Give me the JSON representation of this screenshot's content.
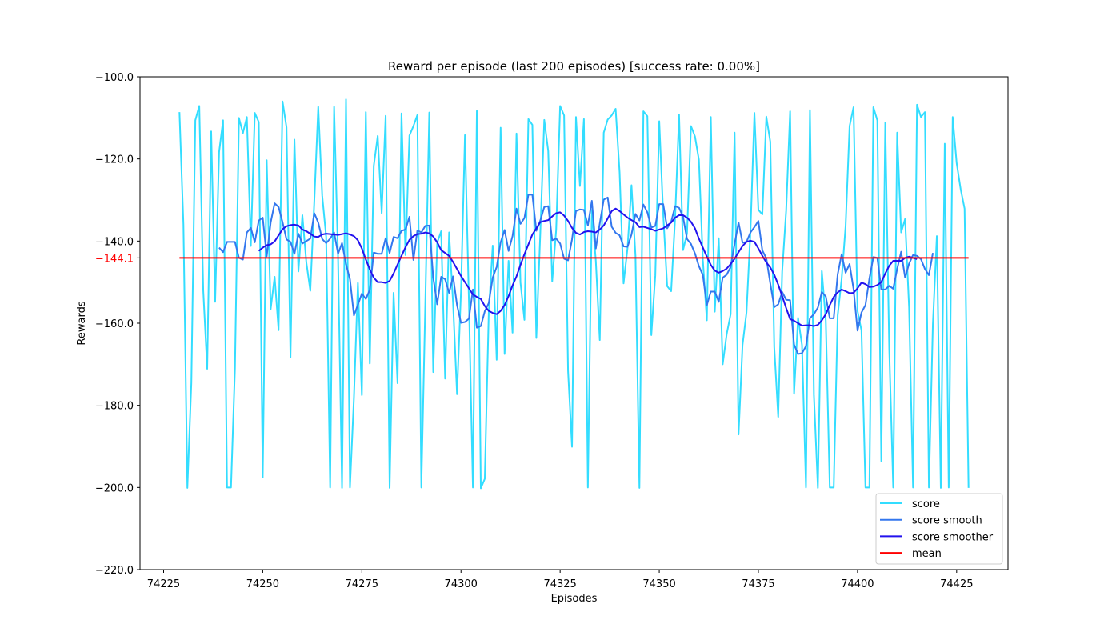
{
  "chart_data": {
    "type": "line",
    "title": "Reward per episode (last 200 episodes) [success rate: 0.00%]",
    "xlabel": "Episodes",
    "ylabel": "Rewards",
    "xlim": [
      74219.05,
      74437.95
    ],
    "ylim": [
      -220,
      -100
    ],
    "xticks": [
      74225,
      74250,
      74275,
      74300,
      74325,
      74350,
      74375,
      74400,
      74425
    ],
    "xtick_labels": [
      "74225",
      "74250",
      "74275",
      "74300",
      "74325",
      "74350",
      "74375",
      "74400",
      "74425"
    ],
    "yticks": [
      -220,
      -200,
      -180,
      -160,
      -140,
      -120,
      -100
    ],
    "ytick_labels": [
      "−220.0",
      "−200.0",
      "−180.0",
      "−160.0",
      "−140.0",
      "−120.0",
      "−100.0"
    ],
    "mean_label": "−144.1",
    "mean_value": -144.1,
    "legend_position": "lower right",
    "grid": false,
    "series": [
      {
        "name": "score",
        "color": "#33ddff",
        "x_start": 74229,
        "values": [
          -108.6,
          -135.9,
          -200.1,
          -174.5,
          -110.6,
          -107.1,
          -152.1,
          -171.1,
          -113.3,
          -154.8,
          -118.3,
          -110.6,
          -200,
          -200,
          -170.9,
          -110,
          -113.7,
          -109.8,
          -141.2,
          -108.8,
          -111,
          -197.6,
          -120.3,
          -156.6,
          -148.7,
          -161.7,
          -106,
          -112.3,
          -168.3,
          -115.3,
          -147.4,
          -133.7,
          -145.2,
          -152.1,
          -130.5,
          -107.3,
          -128.9,
          -139,
          -200,
          -107.3,
          -144.1,
          -200.1,
          -105.5,
          -200,
          -178.2,
          -150.2,
          -177.5,
          -108.6,
          -169.8,
          -121.7,
          -114.4,
          -133.2,
          -109.5,
          -200.1,
          -152.6,
          -174.6,
          -108.9,
          -143.4,
          -114.3,
          -112,
          -109.3,
          -200,
          -155.3,
          -108.7,
          -171.9,
          -140.4,
          -137.6,
          -173.5,
          -137.9,
          -155.1,
          -177.3,
          -152.3,
          -114.2,
          -154.8,
          -200,
          -108.3,
          -200.2,
          -197.9,
          -157.5,
          -141.1,
          -168.9,
          -112.4,
          -167.5,
          -144.8,
          -162.3,
          -113.8,
          -150.1,
          -159.2,
          -110.3,
          -111.7,
          -163.6,
          -138.1,
          -110.5,
          -118.1,
          -149.8,
          -137.3,
          -107.1,
          -109.4,
          -171.6,
          -190.1,
          -109.8,
          -126.6,
          -110.3,
          -200,
          -132.4,
          -144.8,
          -164.1,
          -113.6,
          -110.4,
          -109.4,
          -107.8,
          -123.3,
          -150.3,
          -141.7,
          -126.4,
          -143.6,
          -200.1,
          -108.4,
          -109.6,
          -162.9,
          -148.4,
          -110.8,
          -133.5,
          -151,
          -152.2,
          -134.4,
          -109.2,
          -142.2,
          -138.2,
          -112,
          -114.5,
          -120.2,
          -144.7,
          -159.3,
          -109.8,
          -157.2,
          -139.3,
          -170,
          -162.7,
          -157.8,
          -113.6,
          -187.1,
          -165.3,
          -157.4,
          -137.6,
          -108.8,
          -132.4,
          -133.5,
          -109.7,
          -115.8,
          -165.8,
          -182.8,
          -147.4,
          -132.6,
          -108.4,
          -177.2,
          -158.7,
          -165.3,
          -200,
          -108.1,
          -177.4,
          -200.1,
          -147.3,
          -159.4,
          -200,
          -200,
          -158.1,
          -149.2,
          -136.3,
          -112,
          -107.4,
          -157,
          -161.8,
          -200,
          -200,
          -107.4,
          -110.6,
          -193.6,
          -111.1,
          -166.3,
          -200,
          -113.6,
          -137.9,
          -134.6,
          -156.1,
          -200,
          -106.8,
          -109.8,
          -108.6,
          -200,
          -160.3,
          -138.8,
          -200.1,
          -116.3,
          -200,
          -109.8,
          -121,
          -127.3,
          -132.1,
          -200.1
        ]
      },
      {
        "name": "score smooth",
        "color": "#3377ee",
        "x_start": 74239,
        "values": [
          -141.6,
          -142.7,
          -140.2,
          -140.2,
          -140.2,
          -144.1,
          -144.5,
          -137.9,
          -136.8,
          -140.3,
          -135,
          -134.3,
          -143.7,
          -135.5,
          -130.8,
          -131.7,
          -135.4,
          -139.6,
          -140.2,
          -143.1,
          -138.2,
          -140.6,
          -140,
          -139.4,
          -133.2,
          -135.5,
          -139.5,
          -140.5,
          -139.4,
          -137.9,
          -143.1,
          -140.5,
          -145.6,
          -149.3,
          -158.1,
          -155.5,
          -152.8,
          -154.1,
          -151.9,
          -142.8,
          -143.1,
          -143.1,
          -139.3,
          -142.9,
          -139,
          -139.3,
          -137.5,
          -137.2,
          -134.1,
          -144.6,
          -137.4,
          -137.9,
          -136.3,
          -136.2,
          -148.9,
          -155.4,
          -148.7,
          -149.3,
          -152.6,
          -148.6,
          -155.6,
          -159.9,
          -159.7,
          -158.9,
          -151.8,
          -161.1,
          -160.7,
          -157.1,
          -155.1,
          -148.9,
          -146.3,
          -140.3,
          -137.3,
          -142.4,
          -138.8,
          -132.1,
          -135.8,
          -134.4,
          -128.7,
          -128.7,
          -137.5,
          -135,
          -131.7,
          -131.5,
          -139.8,
          -139.4,
          -140.6,
          -144.3,
          -144.7,
          -139.6,
          -132.7,
          -132.3,
          -132.4,
          -136.2,
          -130.2,
          -141.8,
          -135.7,
          -129.9,
          -129.4,
          -136.5,
          -138,
          -138.6,
          -141.3,
          -141.4,
          -138.4,
          -133.4,
          -135,
          -131.1,
          -133,
          -136.7,
          -136.3,
          -131,
          -131,
          -136.9,
          -135.3,
          -131.5,
          -131.9,
          -134.1,
          -139.5,
          -140.7,
          -143,
          -146.1,
          -148.3,
          -155.6,
          -152.3,
          -152.3,
          -154.8,
          -148.9,
          -148.2,
          -146.3,
          -140.7,
          -135.5,
          -140.4,
          -140.2,
          -137.9,
          -136.6,
          -135.1,
          -142.3,
          -144.2,
          -150.3,
          -156.1,
          -155.4,
          -152.4,
          -154.3,
          -154.4,
          -165.2,
          -167.5,
          -167.3,
          -165.6,
          -158.8,
          -157.8,
          -156.2,
          -152.4,
          -153.5,
          -158.8,
          -158.8,
          -148.1,
          -143.2,
          -147.7,
          -145.6,
          -151.7,
          -161.8,
          -157.4,
          -155.6,
          -149.1,
          -143.9,
          -144.1,
          -151.8,
          -151.8,
          -150.9,
          -151.6,
          -146.8,
          -142.6,
          -148.9,
          -145.5,
          -143.4,
          -143.6,
          -144.4,
          -146.8,
          -148.3,
          -142.9
        ]
      },
      {
        "name": "score smoother",
        "color": "#2211ee",
        "x_start": 74249,
        "values": [
          -142.4,
          -141.6,
          -141,
          -140.8,
          -140.1,
          -138.6,
          -137.1,
          -136.4,
          -136.1,
          -136,
          -136.2,
          -137.2,
          -137.6,
          -138.2,
          -138.9,
          -139,
          -138.4,
          -138.2,
          -138.3,
          -138.4,
          -138.5,
          -138.3,
          -138.1,
          -138.4,
          -138.8,
          -139.8,
          -141.8,
          -144.5,
          -146.9,
          -148.9,
          -150,
          -150,
          -150.2,
          -149.7,
          -147.9,
          -145.7,
          -143.6,
          -141.5,
          -139.7,
          -138.8,
          -138.3,
          -138.2,
          -137.9,
          -138.1,
          -138.9,
          -140.3,
          -142.2,
          -142.9,
          -143.6,
          -145.1,
          -146.8,
          -148.5,
          -150,
          -151.5,
          -153,
          -153.6,
          -154.1,
          -155.8,
          -157,
          -157.5,
          -157.8,
          -157,
          -155.6,
          -153.4,
          -150.8,
          -148.6,
          -145.8,
          -143.2,
          -140.8,
          -138.4,
          -136.9,
          -135.4,
          -135.1,
          -134.9,
          -134,
          -133.2,
          -133,
          -133.8,
          -135.1,
          -136.8,
          -138,
          -138.4,
          -137.8,
          -137.6,
          -137.7,
          -137.9,
          -137.2,
          -136.2,
          -134.5,
          -132.7,
          -132.1,
          -132.7,
          -133.5,
          -134.3,
          -134.9,
          -135.4,
          -136.6,
          -136.5,
          -136.8,
          -137.1,
          -137.5,
          -137.2,
          -136.9,
          -136.2,
          -135.5,
          -134.3,
          -133.7,
          -133.7,
          -134.3,
          -135.3,
          -136.9,
          -139.4,
          -141.6,
          -143.8,
          -145.8,
          -147.2,
          -147.7,
          -147.3,
          -146.7,
          -145.6,
          -144.3,
          -142.7,
          -141.2,
          -140.2,
          -139.9,
          -140.2,
          -141.8,
          -143.6,
          -145.2,
          -146.4,
          -148.2,
          -150.6,
          -153.4,
          -156.3,
          -159,
          -159.4,
          -160,
          -160.6,
          -160.5,
          -160.5,
          -160.7,
          -160.4,
          -159.3,
          -157.8,
          -155.6,
          -153.6,
          -152.5,
          -151.8,
          -152.2,
          -152.7,
          -152.6,
          -151.5,
          -150.1,
          -150.5,
          -151.2,
          -151.1,
          -150.7,
          -150,
          -147.9,
          -146,
          -144.8,
          -144.8,
          -144.8,
          -144.1,
          -143.8,
          -144.1,
          -144.4
        ]
      }
    ]
  }
}
